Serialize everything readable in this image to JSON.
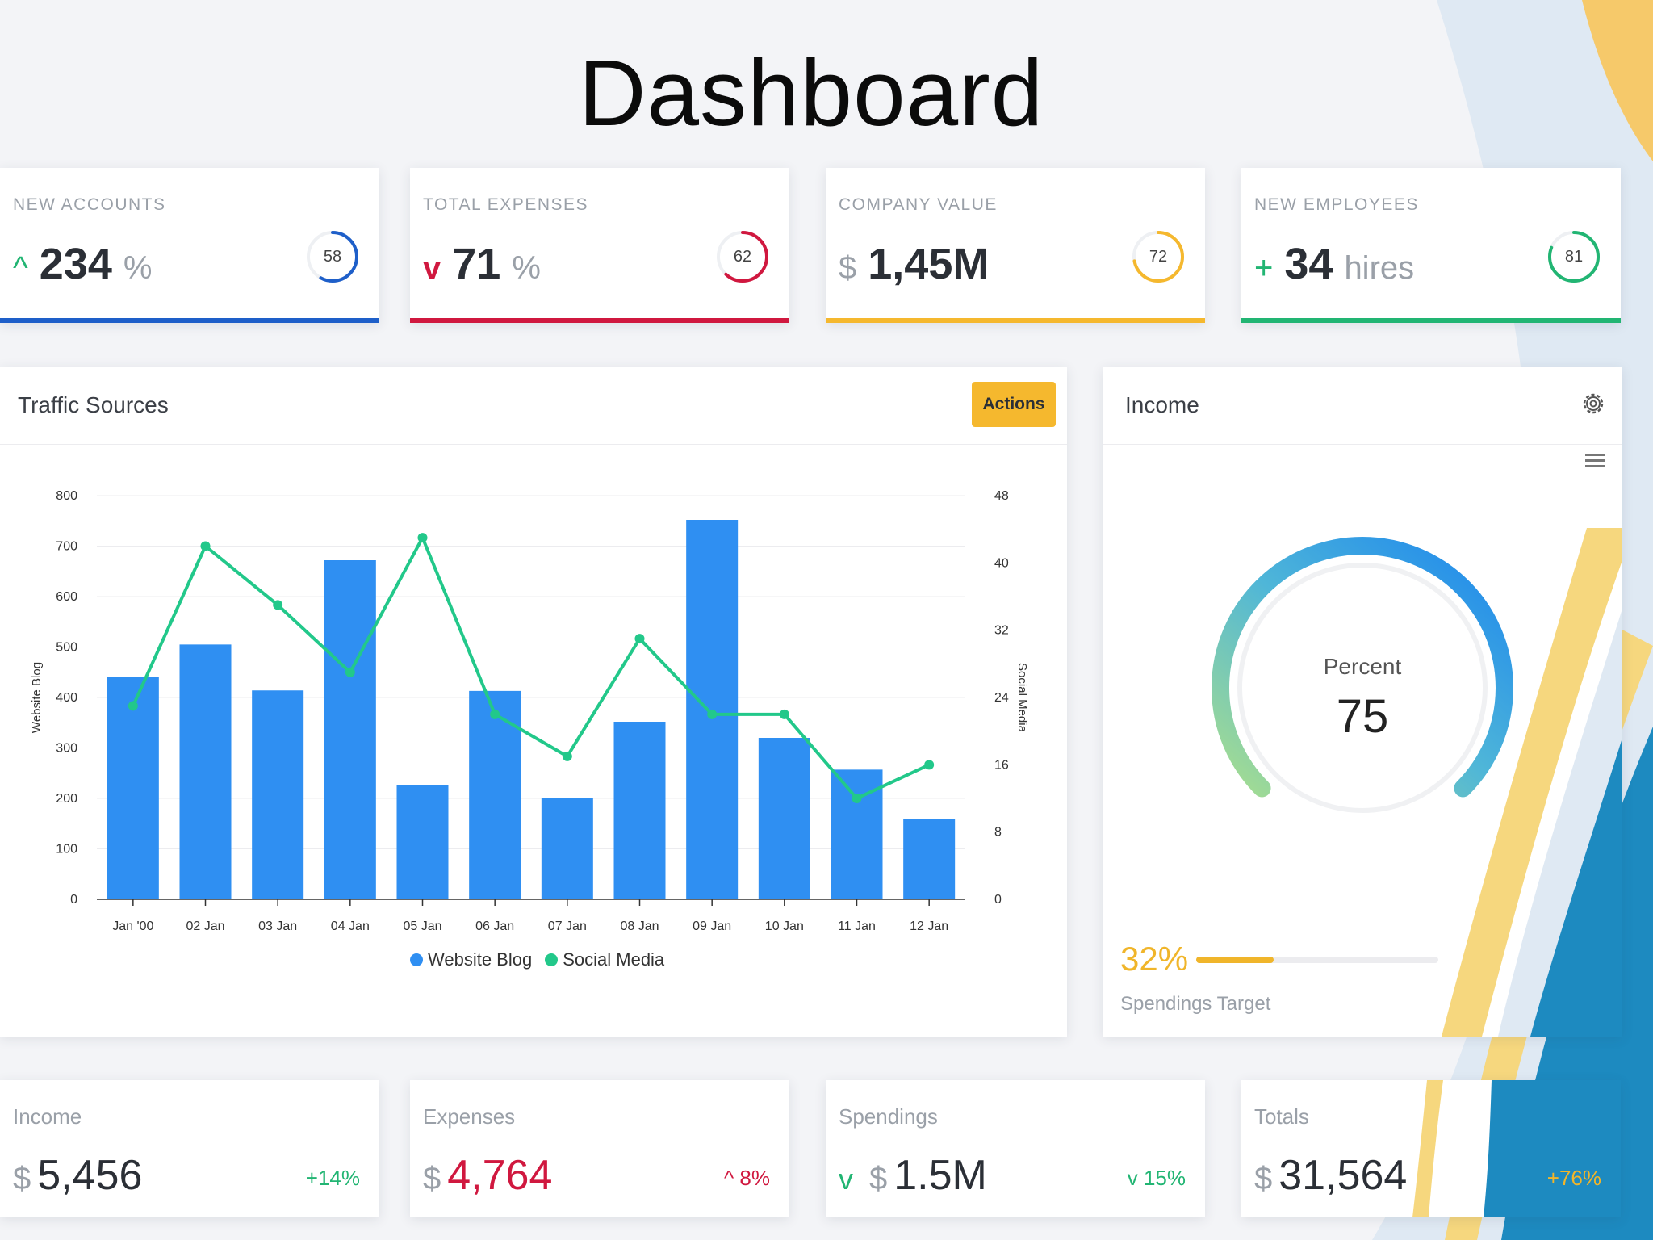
{
  "header": {
    "title": "Dashboard"
  },
  "kpis": [
    {
      "label": "NEW ACCOUNTS",
      "prefix": "^",
      "value": "234",
      "unit": "%",
      "ring": "58",
      "ring_pct": 0.58,
      "color": "#1e5fc9",
      "prefix_color": "#22b573"
    },
    {
      "label": "TOTAL EXPENSES",
      "prefix": "v",
      "value": "71",
      "unit": "%",
      "ring": "62",
      "ring_pct": 0.62,
      "color": "#d0183f",
      "prefix_color": "#d0183f"
    },
    {
      "label": "COMPANY VALUE",
      "prefix": "$",
      "value": "1,45M",
      "unit": "",
      "ring": "72",
      "ring_pct": 0.72,
      "color": "#f5b82e",
      "prefix_color": "#9aa0a8"
    },
    {
      "label": "NEW EMPLOYEES",
      "prefix": "+",
      "value": "34",
      "unit": "hires",
      "ring": "81",
      "ring_pct": 0.81,
      "color": "#22b573",
      "prefix_color": "#22b573"
    }
  ],
  "traffic": {
    "title": "Traffic Sources",
    "actions_label": "Actions",
    "legend": [
      {
        "label": "Website Blog",
        "color": "#2f8ff2"
      },
      {
        "label": "Social Media",
        "color": "#22c88a"
      }
    ]
  },
  "chart_data": {
    "type": "bar",
    "categories": [
      "Jan '00",
      "02 Jan",
      "03 Jan",
      "04 Jan",
      "05 Jan",
      "06 Jan",
      "07 Jan",
      "08 Jan",
      "09 Jan",
      "10 Jan",
      "11 Jan",
      "12 Jan"
    ],
    "series": [
      {
        "name": "Website Blog",
        "type": "bar",
        "axis": "left",
        "color": "#2f8ff2",
        "values": [
          440,
          505,
          414,
          672,
          227,
          413,
          201,
          352,
          752,
          320,
          257,
          160
        ]
      },
      {
        "name": "Social Media",
        "type": "line",
        "axis": "right",
        "color": "#22c88a",
        "values": [
          23,
          42,
          35,
          27,
          43,
          22,
          17,
          31,
          22,
          22,
          12,
          16
        ]
      }
    ],
    "ylabel": "Website Blog",
    "y2label": "Social Media",
    "ylim": [
      0,
      800
    ],
    "yticks": [
      "800",
      "700",
      "600",
      "500",
      "400",
      "300",
      "200",
      "100",
      "0"
    ],
    "y2lim": [
      0,
      48
    ],
    "y2ticks": [
      "48",
      "40",
      "32",
      "24",
      "16",
      "8",
      "0"
    ],
    "grid": true,
    "legend_position": "bottom"
  },
  "income": {
    "title": "Income",
    "gauge_label": "Percent",
    "gauge_value": "75",
    "gauge_pct": 0.75,
    "spend_pct_text": "32%",
    "spend_pct": 0.32,
    "spend_label": "Spendings Target"
  },
  "stats": [
    {
      "label": "Income",
      "currency": "$",
      "value": "5,456",
      "change": "+14%",
      "value_color": "#2b2f36",
      "change_color": "#22b573",
      "check": ""
    },
    {
      "label": "Expenses",
      "currency": "$",
      "value": "4,764",
      "change": "^ 8%",
      "value_color": "#d0183f",
      "change_color": "#d0183f",
      "check": ""
    },
    {
      "label": "Spendings",
      "currency": "$",
      "value": "1.5M",
      "change": "v 15%",
      "value_color": "#2b2f36",
      "change_color": "#22b573",
      "check": "v"
    },
    {
      "label": "Totals",
      "currency": "$",
      "value": "31,564",
      "change": "+76%",
      "value_color": "#2b2f36",
      "change_color": "#f0b52a",
      "check": ""
    }
  ]
}
